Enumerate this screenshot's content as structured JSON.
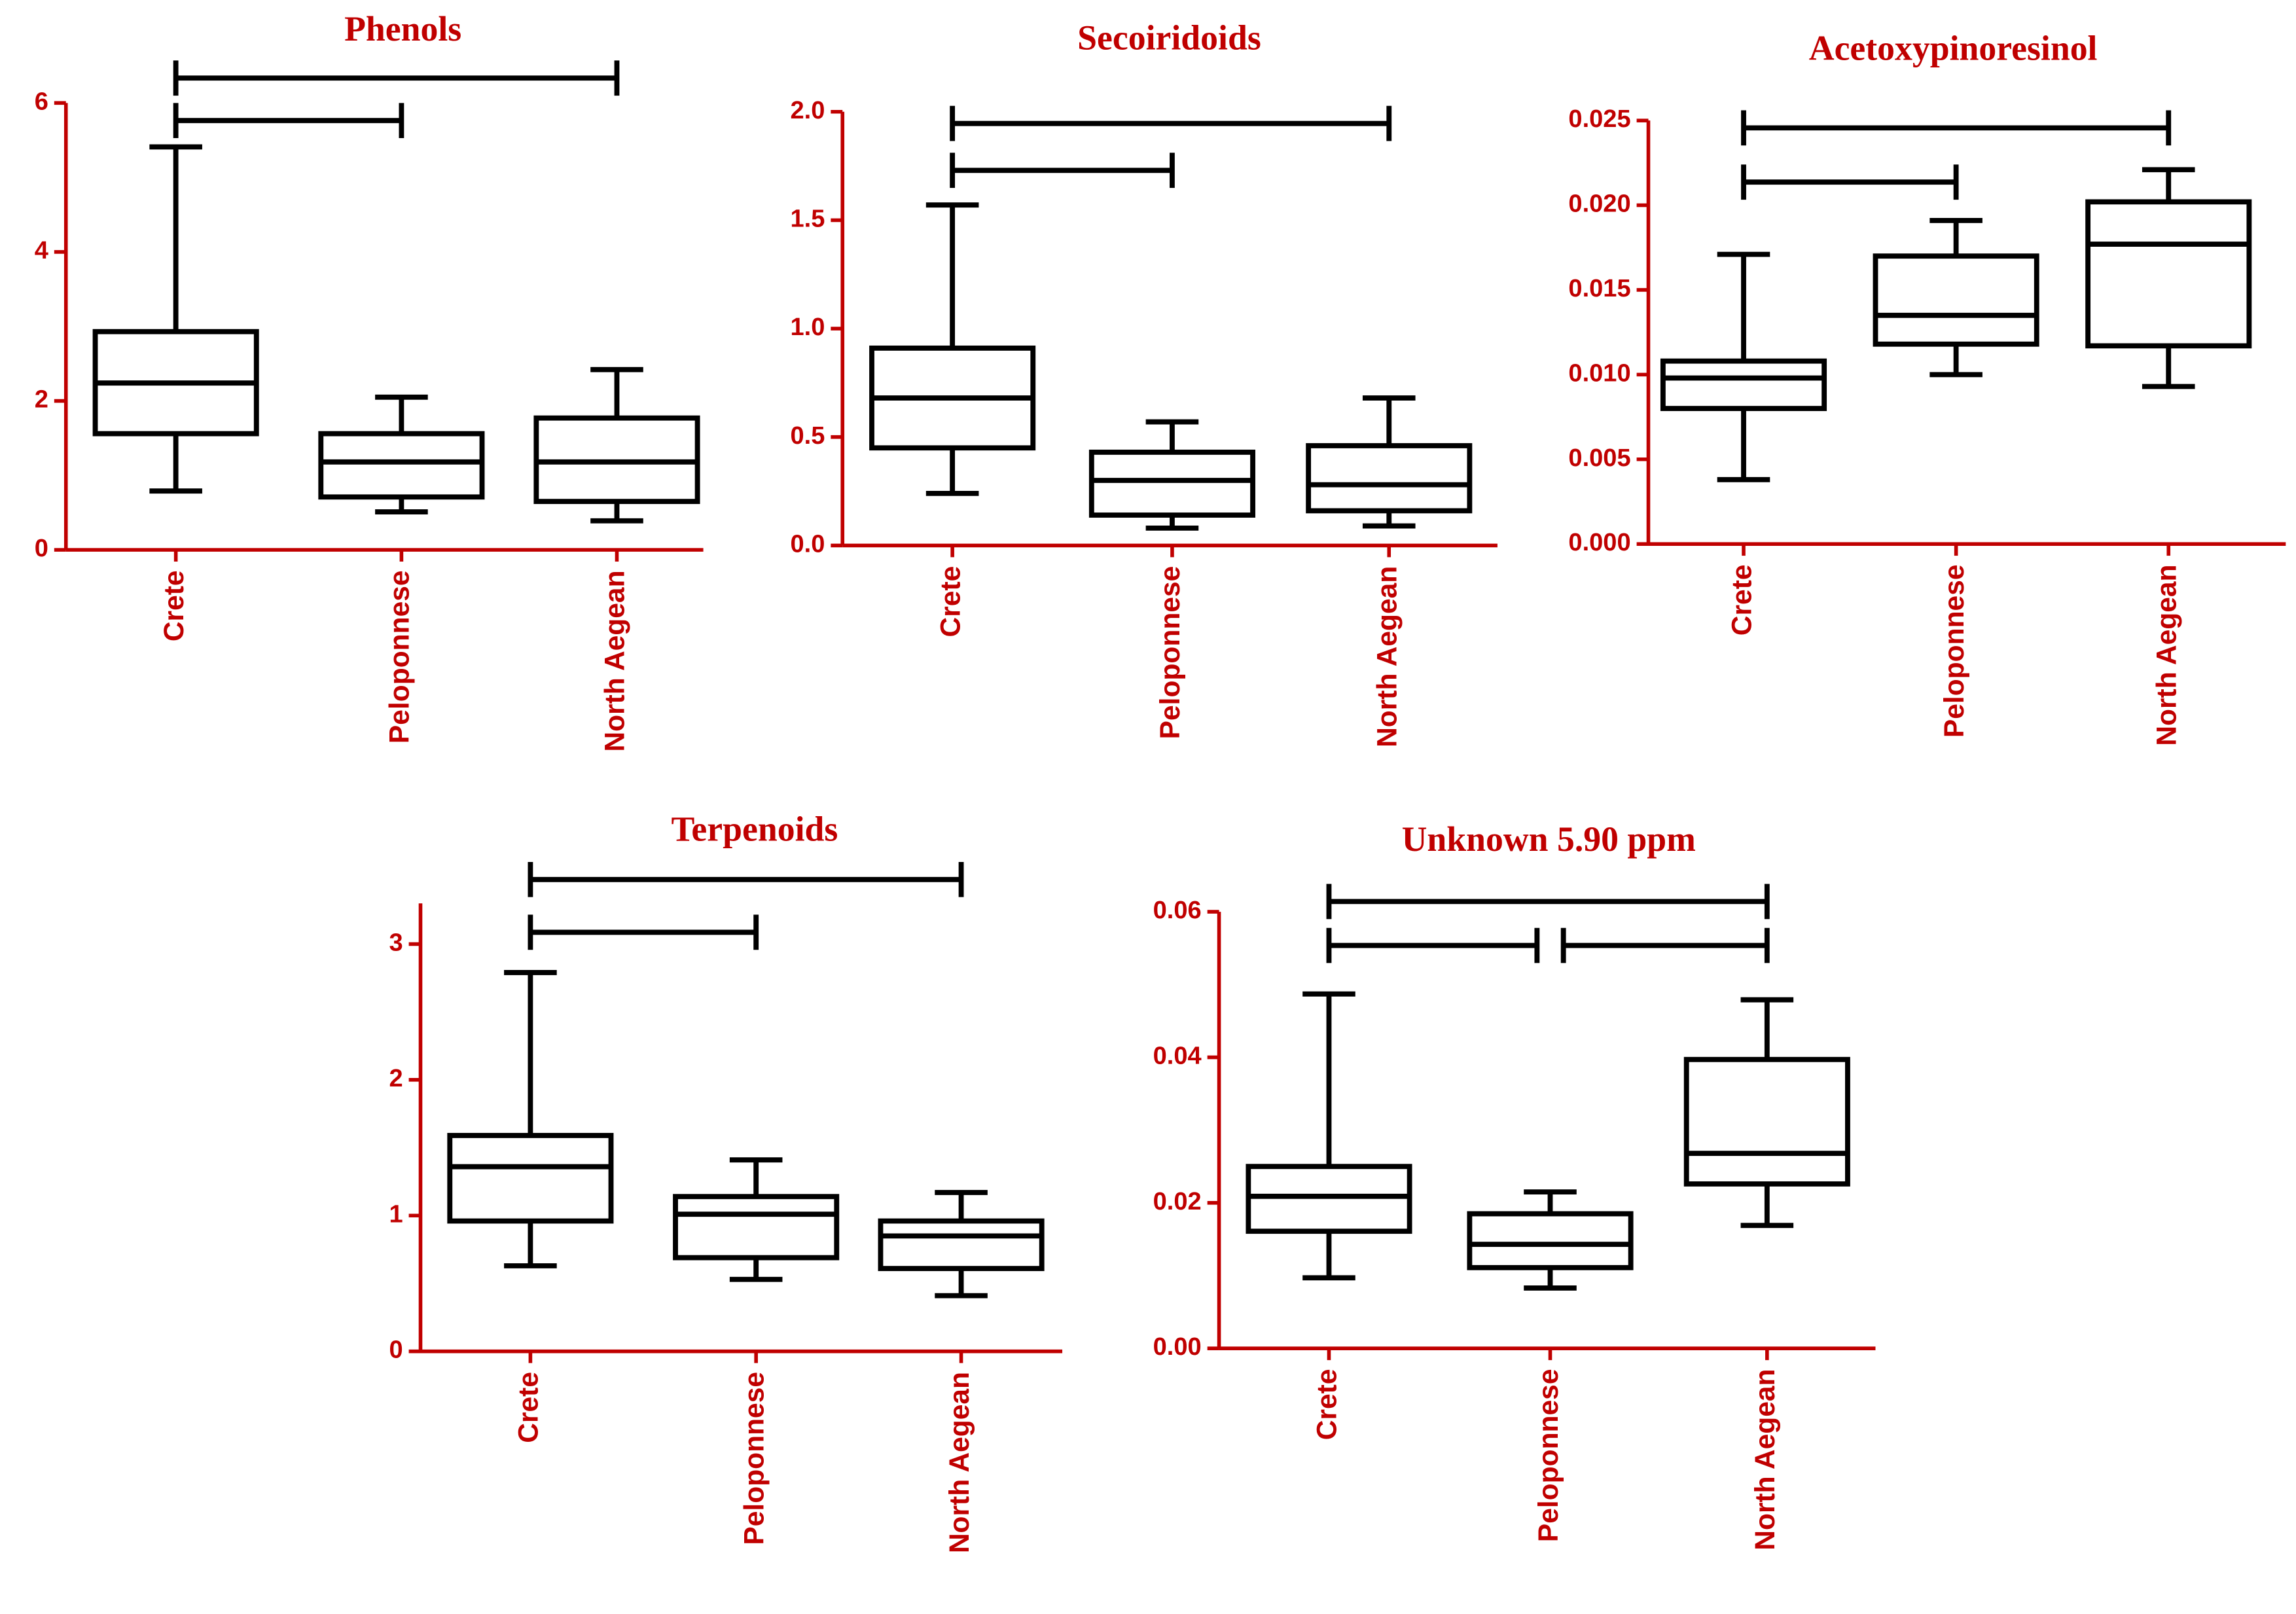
{
  "chart_data": [
    {
      "type": "box",
      "title": "Phenols",
      "categories": [
        "Crete",
        "Peloponnese",
        "North Aegean"
      ],
      "min": [
        0.79,
        0.51,
        0.39
      ],
      "q1": [
        1.56,
        0.71,
        0.65
      ],
      "median": [
        2.24,
        1.18,
        1.18
      ],
      "q3": [
        2.93,
        1.56,
        1.77
      ],
      "max": [
        5.41,
        2.05,
        2.42
      ],
      "ylim": [
        0,
        6
      ],
      "yticks": [
        0,
        2,
        4,
        6
      ],
      "comparisons": [
        [
          0,
          2
        ],
        [
          0,
          1
        ]
      ]
    },
    {
      "type": "box",
      "title": "Secoiridoids",
      "categories": [
        "Crete",
        "Peloponnese",
        "North Aegean"
      ],
      "min": [
        0.24,
        0.08,
        0.09
      ],
      "q1": [
        0.45,
        0.14,
        0.16
      ],
      "median": [
        0.68,
        0.3,
        0.28
      ],
      "q3": [
        0.91,
        0.43,
        0.46
      ],
      "max": [
        1.57,
        0.57,
        0.68
      ],
      "ylim": [
        0,
        2
      ],
      "yticks": [
        {
          "value": 0,
          "label": "0.0"
        },
        0.5,
        {
          "value": 1,
          "label": "1.0"
        },
        1.5,
        {
          "value": 2,
          "label": "2.0"
        }
      ],
      "comparisons": [
        [
          0,
          2
        ],
        [
          0,
          1
        ]
      ]
    },
    {
      "type": "box",
      "title": "Acetoxypinoresinol",
      "categories": [
        "Crete",
        "Peloponnese",
        "North Aegean"
      ],
      "min": [
        0.0038,
        0.01,
        0.0093
      ],
      "q1": [
        0.008,
        0.0118,
        0.0117
      ],
      "median": [
        0.0098,
        0.0135,
        0.0177
      ],
      "q3": [
        0.0108,
        0.017,
        0.0202
      ],
      "max": [
        0.0171,
        0.0191,
        0.0221
      ],
      "ylim": [
        0,
        0.025
      ],
      "yticks": [
        {
          "value": 0,
          "label": "0.000"
        },
        0.005,
        {
          "value": 0.01,
          "label": "0.010"
        },
        0.015,
        {
          "value": 0.02,
          "label": "0.020"
        },
        0.025
      ],
      "comparisons": [
        [
          0,
          2
        ],
        [
          0,
          1
        ]
      ]
    },
    {
      "type": "box",
      "title": "Terpenoids",
      "categories": [
        "Crete",
        "Peloponnese",
        "North Aegean"
      ],
      "min": [
        0.63,
        0.53,
        0.41
      ],
      "q1": [
        0.96,
        0.69,
        0.61
      ],
      "median": [
        1.36,
        1.01,
        0.85
      ],
      "q3": [
        1.59,
        1.14,
        0.96
      ],
      "max": [
        2.79,
        1.41,
        1.17
      ],
      "ylim": [
        0,
        3.3
      ],
      "yticks": [
        0,
        1,
        2,
        3
      ],
      "comparisons": [
        [
          0,
          2
        ],
        [
          0,
          1
        ]
      ]
    },
    {
      "type": "box",
      "title": "Unknown 5.90 ppm",
      "categories": [
        "Crete",
        "Peloponnese",
        "North Aegean"
      ],
      "min": [
        0.0097,
        0.0083,
        0.0169
      ],
      "q1": [
        0.0161,
        0.0111,
        0.0226
      ],
      "median": [
        0.0209,
        0.0143,
        0.0268
      ],
      "q3": [
        0.025,
        0.0185,
        0.0397
      ],
      "max": [
        0.0487,
        0.0215,
        0.0479
      ],
      "ylim": [
        0,
        0.06
      ],
      "yticks": [
        {
          "value": 0,
          "label": "0.00"
        },
        0.02,
        0.04,
        0.06
      ],
      "comparisons": [
        [
          0,
          2
        ],
        [
          0,
          1
        ],
        [
          1,
          2
        ]
      ]
    }
  ]
}
